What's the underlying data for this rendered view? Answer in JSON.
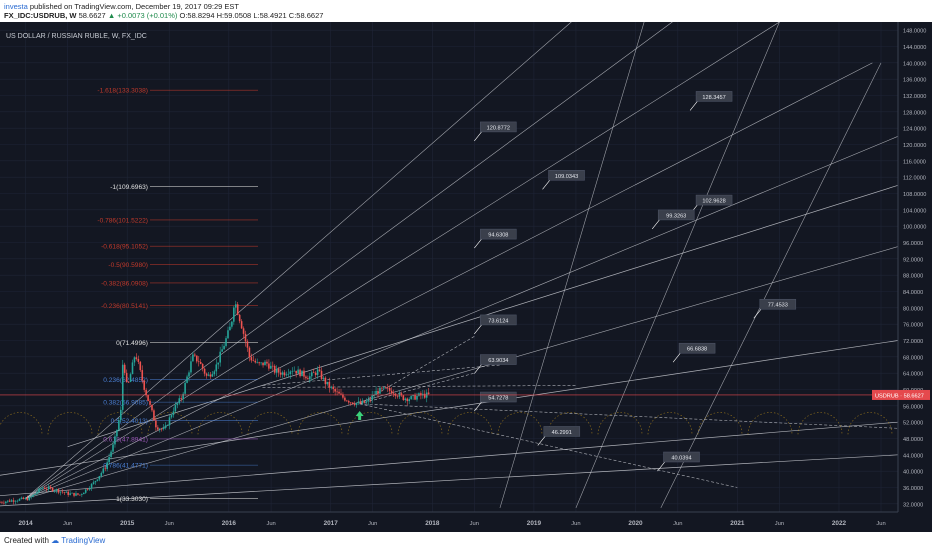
{
  "header": {
    "author": "investa",
    "published_text": " published on TradingView.com, December 19, 2017 09:29 EST",
    "symbol": "FX_IDC:USDRUB, W",
    "last": "58.6627",
    "change": "+0.0073 (+0.01%)",
    "open": "O:58.8294",
    "high": "H:59.0508",
    "low": "L:58.4921",
    "close": "C:58.6627"
  },
  "footer": {
    "created_with": "Created with",
    "brand": "TradingView"
  },
  "colors": {
    "background": "#131722",
    "grid": "#1f2536",
    "up_candle": "#26a69a",
    "down_candle": "#ef5350",
    "price_line": "#e5494d",
    "fib_red": "#c0392b",
    "fib_blue": "#4a7fd4",
    "fib_purple": "#9b59b6",
    "fib_white": "#e0e0e0"
  },
  "chart_data": {
    "type": "candlestick",
    "title": "US DOLLAR / RUSSIAN RUBLE, W, FX_IDC",
    "ylim": [
      30,
      150
    ],
    "xlim": [
      "2013-10-01",
      "2022-08-01"
    ],
    "y_ticks": [
      "32.0000",
      "36.0000",
      "40.0000",
      "44.0000",
      "48.0000",
      "52.0000",
      "56.0000",
      "60.0000",
      "64.0000",
      "68.0000",
      "72.0000",
      "76.0000",
      "80.0000",
      "84.0000",
      "88.0000",
      "92.0000",
      "96.0000",
      "100.0000",
      "104.0000",
      "108.0000",
      "112.0000",
      "116.0000",
      "120.0000",
      "124.0000",
      "128.0000",
      "132.0000",
      "136.0000",
      "140.0000",
      "144.0000",
      "148.0000"
    ],
    "x_ticks": [
      {
        "label": "2014",
        "date": "2014-01-01",
        "bold": true
      },
      {
        "label": "Jun",
        "date": "2014-06-01",
        "bold": false
      },
      {
        "label": "2015",
        "date": "2015-01-01",
        "bold": true
      },
      {
        "label": "Jun",
        "date": "2015-06-01",
        "bold": false
      },
      {
        "label": "2016",
        "date": "2016-01-01",
        "bold": true
      },
      {
        "label": "Jun",
        "date": "2016-06-01",
        "bold": false
      },
      {
        "label": "2017",
        "date": "2017-01-01",
        "bold": true
      },
      {
        "label": "Jun",
        "date": "2017-06-01",
        "bold": false
      },
      {
        "label": "2018",
        "date": "2018-01-01",
        "bold": true
      },
      {
        "label": "Jun",
        "date": "2018-06-01",
        "bold": false
      },
      {
        "label": "2019",
        "date": "2019-01-01",
        "bold": true
      },
      {
        "label": "Jun",
        "date": "2019-06-01",
        "bold": false
      },
      {
        "label": "2020",
        "date": "2020-01-01",
        "bold": true
      },
      {
        "label": "Jun",
        "date": "2020-06-01",
        "bold": false
      },
      {
        "label": "2021",
        "date": "2021-01-01",
        "bold": true
      },
      {
        "label": "Jun",
        "date": "2021-06-01",
        "bold": false
      },
      {
        "label": "2022",
        "date": "2022-01-01",
        "bold": true
      },
      {
        "label": "Jun",
        "date": "2022-06-01",
        "bold": false
      }
    ],
    "price_label": "USDRUB",
    "last_price": 58.6627,
    "price_path": [
      [
        "2013-10-01",
        32.4
      ],
      [
        "2013-12-01",
        33.0
      ],
      [
        "2014-01-15",
        33.3
      ],
      [
        "2014-03-01",
        36.0
      ],
      [
        "2014-04-15",
        35.5
      ],
      [
        "2014-06-01",
        34.5
      ],
      [
        "2014-07-15",
        34.2
      ],
      [
        "2014-09-01",
        37.0
      ],
      [
        "2014-10-15",
        41.0
      ],
      [
        "2014-11-15",
        47.0
      ],
      [
        "2014-12-10",
        55.0
      ],
      [
        "2014-12-17",
        68.0
      ],
      [
        "2015-01-01",
        60.0
      ],
      [
        "2015-01-30",
        69.0
      ],
      [
        "2015-03-01",
        61.0
      ],
      [
        "2015-04-15",
        51.0
      ],
      [
        "2015-05-15",
        50.0
      ],
      [
        "2015-06-15",
        55.0
      ],
      [
        "2015-07-15",
        58.0
      ],
      [
        "2015-08-24",
        68.0
      ],
      [
        "2015-09-15",
        67.0
      ],
      [
        "2015-10-15",
        63.0
      ],
      [
        "2015-11-15",
        65.5
      ],
      [
        "2015-12-15",
        71.0
      ],
      [
        "2016-01-10",
        76.0
      ],
      [
        "2016-01-21",
        82.0
      ],
      [
        "2016-02-15",
        76.0
      ],
      [
        "2016-03-15",
        68.0
      ],
      [
        "2016-04-15",
        66.0
      ],
      [
        "2016-05-15",
        66.5
      ],
      [
        "2016-06-15",
        64.5
      ],
      [
        "2016-07-15",
        64.0
      ],
      [
        "2016-08-15",
        65.0
      ],
      [
        "2016-09-15",
        64.0
      ],
      [
        "2016-10-15",
        63.0
      ],
      [
        "2016-11-15",
        64.5
      ],
      [
        "2016-12-15",
        61.5
      ],
      [
        "2017-01-15",
        59.5
      ],
      [
        "2017-02-15",
        58.0
      ],
      [
        "2017-03-15",
        57.0
      ],
      [
        "2017-04-15",
        56.5
      ],
      [
        "2017-05-15",
        57.0
      ],
      [
        "2017-06-15",
        59.5
      ],
      [
        "2017-07-15",
        60.0
      ],
      [
        "2017-08-15",
        59.5
      ],
      [
        "2017-09-15",
        58.0
      ],
      [
        "2017-10-15",
        57.8
      ],
      [
        "2017-11-15",
        58.5
      ],
      [
        "2017-12-19",
        58.6627
      ]
    ],
    "fib_levels": [
      {
        "label": "-1.618(133.3038)",
        "value": 133.3038,
        "color": "#c0392b"
      },
      {
        "label": "-1(109.6963)",
        "value": 109.6963,
        "color": "#e0e0e0"
      },
      {
        "label": "-0.786(101.5222)",
        "value": 101.5222,
        "color": "#c0392b"
      },
      {
        "label": "-0.618(95.1052)",
        "value": 95.1052,
        "color": "#c0392b"
      },
      {
        "label": "-0.5(90.5980)",
        "value": 90.598,
        "color": "#c0392b"
      },
      {
        "label": "-0.382(86.0908)",
        "value": 86.0908,
        "color": "#c0392b"
      },
      {
        "label": "-0.236(80.5141)",
        "value": 80.5141,
        "color": "#c0392b"
      },
      {
        "label": "0(71.4996)",
        "value": 71.4996,
        "color": "#e0e0e0"
      },
      {
        "label": "0.236(62.4852)",
        "value": 62.4852,
        "color": "#4a7fd4"
      },
      {
        "label": "0.382(56.9085)",
        "value": 56.9085,
        "color": "#4a7fd4"
      },
      {
        "label": "0.5(52.4013)",
        "value": 52.4013,
        "color": "#4a7fd4"
      },
      {
        "label": "0.618(47.8941)",
        "value": 47.8941,
        "color": "#9b59b6"
      },
      {
        "label": "0.786(41.4771)",
        "value": 41.4771,
        "color": "#4a7fd4"
      },
      {
        "label": "1(33.3030)",
        "value": 33.303,
        "color": "#e0e0e0"
      }
    ],
    "annotations": [
      {
        "text": "128.3457",
        "date": "2020-07-15",
        "value": 128.3457
      },
      {
        "text": "120.8772",
        "date": "2018-06-01",
        "value": 120.8772
      },
      {
        "text": "109.0343",
        "date": "2019-02-01",
        "value": 109.0343
      },
      {
        "text": "102.9628",
        "date": "2020-07-15",
        "value": 102.9628
      },
      {
        "text": "99.3263",
        "date": "2020-03-01",
        "value": 99.3263
      },
      {
        "text": "94.6308",
        "date": "2018-06-01",
        "value": 94.6308
      },
      {
        "text": "77.4533",
        "date": "2021-03-01",
        "value": 77.4533
      },
      {
        "text": "73.6124",
        "date": "2018-06-01",
        "value": 73.6124
      },
      {
        "text": "66.6838",
        "date": "2020-05-15",
        "value": 66.6838
      },
      {
        "text": "63.9034",
        "date": "2018-06-01",
        "value": 63.9034
      },
      {
        "text": "54.7278",
        "date": "2018-06-01",
        "value": 54.7278
      },
      {
        "text": "46.2991",
        "date": "2019-01-15",
        "value": 46.2991
      },
      {
        "text": "40.0394",
        "date": "2020-03-20",
        "value": 40.0394
      }
    ]
  }
}
